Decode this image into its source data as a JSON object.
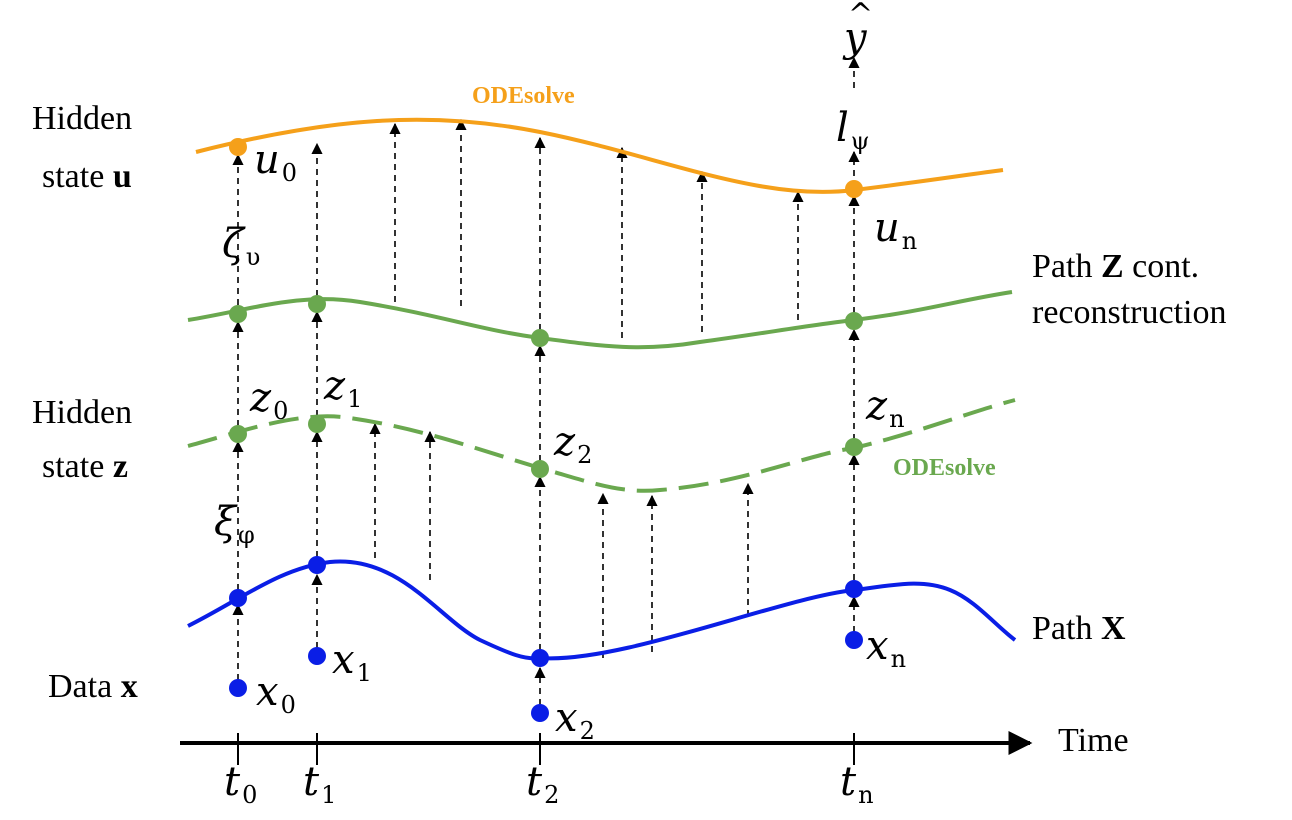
{
  "rows": {
    "hidden_u": {
      "line1": "Hidden",
      "line2_text": "state ",
      "line2_bold": "u"
    },
    "path_z": {
      "line1_text": "Path ",
      "line1_bold": "Z",
      "line1_tail": " cont.",
      "line2": "reconstruction"
    },
    "hidden_z": {
      "line1": "Hidden",
      "line2_text": "state ",
      "line2_bold": "z"
    },
    "path_x": {
      "text": "Path ",
      "bold": "X"
    },
    "data_x": {
      "text": "Data ",
      "bold": "x"
    }
  },
  "ode_labels": {
    "top": "ODEsolve",
    "mid": "ODEsolve"
  },
  "time_axis": {
    "label": "Time",
    "ticks": [
      {
        "sym": "t",
        "sub": "0"
      },
      {
        "sym": "t",
        "sub": "1"
      },
      {
        "sym": "t",
        "sub": "2"
      },
      {
        "sym": "t",
        "sub": "n"
      }
    ]
  },
  "math": {
    "y_hat": "y",
    "l_psi": {
      "sym": "l",
      "sub": "ψ"
    },
    "u0": {
      "sym": "u",
      "sub": "0"
    },
    "un": {
      "sym": "u",
      "sub": "n"
    },
    "zeta": {
      "sym": "ζ",
      "sub": "υ"
    },
    "xi": {
      "sym": "ξ",
      "sub": "φ"
    },
    "z0": {
      "sym": "z",
      "sub": "0"
    },
    "z1": {
      "sym": "z",
      "sub": "1"
    },
    "z2": {
      "sym": "z",
      "sub": "2"
    },
    "zn": {
      "sym": "z",
      "sub": "n"
    },
    "x0": {
      "sym": "x",
      "sub": "0"
    },
    "x1": {
      "sym": "x",
      "sub": "1"
    },
    "x2": {
      "sym": "x",
      "sub": "2"
    },
    "xn": {
      "sym": "x",
      "sub": "n"
    }
  },
  "colors": {
    "orange": "#f5a01a",
    "green": "#6aa84f",
    "blue": "#0a1ee6",
    "black": "#000000"
  }
}
